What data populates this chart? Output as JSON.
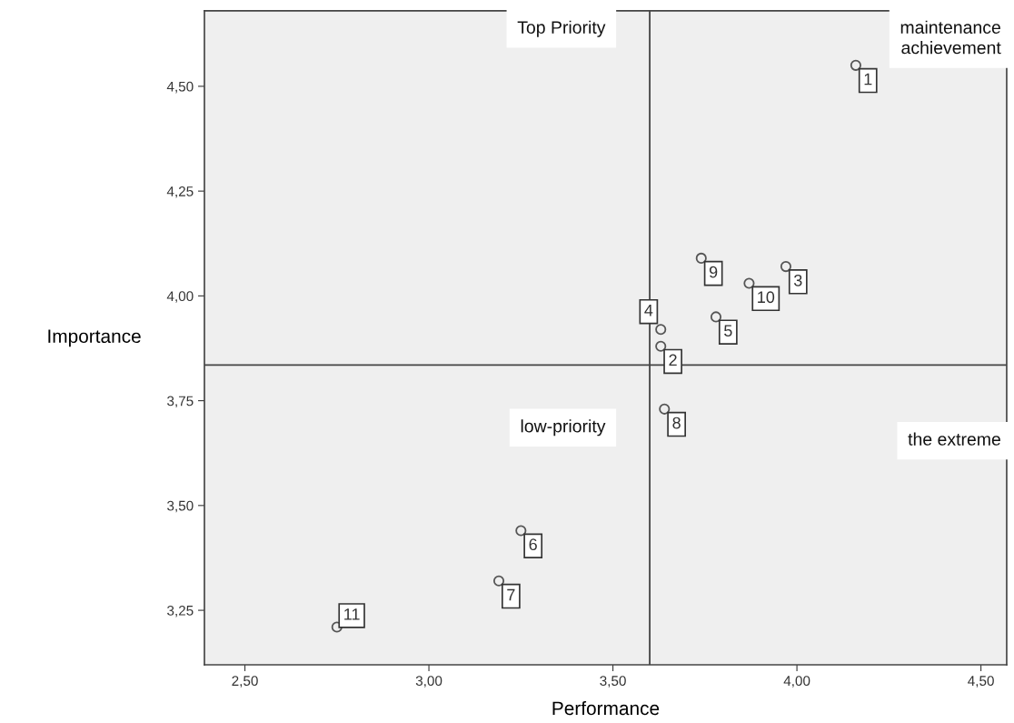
{
  "chart_data": {
    "type": "scatter",
    "xlabel": "Performance",
    "ylabel": "Importance",
    "x": [
      4.16,
      3.63,
      3.97,
      3.63,
      3.78,
      3.25,
      3.19,
      3.64,
      3.74,
      3.87,
      2.75
    ],
    "series": [
      {
        "color": "#555555",
        "values": [
          4.55,
          3.88,
          4.07,
          3.92,
          3.95,
          3.44,
          3.32,
          3.73,
          4.09,
          4.03,
          3.21
        ]
      }
    ],
    "value_labels": [
      "1",
      "2",
      "3",
      "4",
      "5",
      "6",
      "7",
      "8",
      "9",
      "10",
      "11"
    ],
    "marker": "circle",
    "xlim": [
      2.39,
      4.57
    ],
    "ylim": [
      3.12,
      4.68
    ],
    "xticks": [
      {
        "value": 2.5,
        "label": "2,50"
      },
      {
        "value": 3.0,
        "label": "3,00"
      },
      {
        "value": 3.5,
        "label": "3,50"
      },
      {
        "value": 4.0,
        "label": "4,00"
      },
      {
        "value": 4.5,
        "label": "4,50"
      }
    ],
    "yticks": [
      {
        "value": 3.25,
        "label": "3,25"
      },
      {
        "value": 3.5,
        "label": "3,50"
      },
      {
        "value": 3.75,
        "label": "3,75"
      },
      {
        "value": 4.0,
        "label": "4,00"
      },
      {
        "value": 4.25,
        "label": "4,25"
      },
      {
        "value": 4.5,
        "label": "4,50"
      }
    ],
    "ref_lines": [
      {
        "axis": "x",
        "value": 3.6,
        "color": "#444444"
      },
      {
        "axis": "y",
        "value": 3.835,
        "color": "#444444"
      }
    ],
    "annotations": [
      "Top Priority",
      "maintenance\nachievement",
      "low-priority",
      "the extreme"
    ],
    "grid": false,
    "legend": false
  }
}
